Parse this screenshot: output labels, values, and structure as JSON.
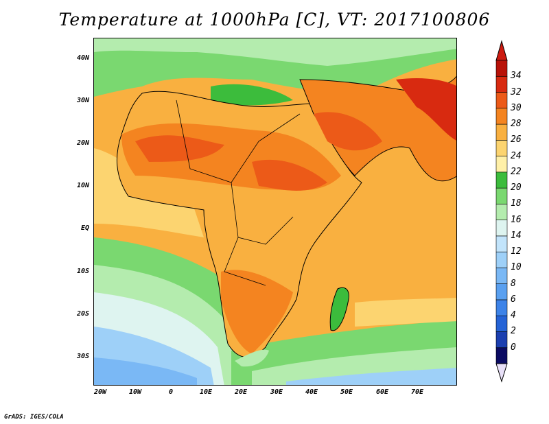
{
  "title": "Temperature at 1000hPa [C], VT: 2017100806",
  "credit": "GrADS: IGES/COLA",
  "map": {
    "lon_range": [
      -25,
      80
    ],
    "lat_range": [
      -37,
      45
    ],
    "lat_ticks": [
      "40N",
      "30N",
      "20N",
      "10N",
      "EQ",
      "10S",
      "20S",
      "30S"
    ],
    "lon_ticks": [
      "20W",
      "10W",
      "0",
      "10E",
      "20E",
      "30E",
      "40E",
      "50E",
      "60E",
      "70E"
    ]
  },
  "colorbar": {
    "levels": [
      "0",
      "2",
      "4",
      "6",
      "8",
      "10",
      "12",
      "14",
      "16",
      "18",
      "20",
      "22",
      "24",
      "26",
      "28",
      "30",
      "32",
      "34"
    ],
    "colors": [
      "#0b0b62",
      "#1b3fb0",
      "#2563d6",
      "#3d83e8",
      "#5aa0f0",
      "#7ab8f5",
      "#9ed0f8",
      "#c2e4fb",
      "#def4f0",
      "#b4ecae",
      "#7ad870",
      "#3cbc3c",
      "#fff0a8",
      "#fcd470",
      "#f9b040",
      "#f48420",
      "#ec5a18",
      "#d82a10",
      "#b81208"
    ],
    "under_color": "#e8e0f8",
    "over_color": "#cc1a10"
  }
}
